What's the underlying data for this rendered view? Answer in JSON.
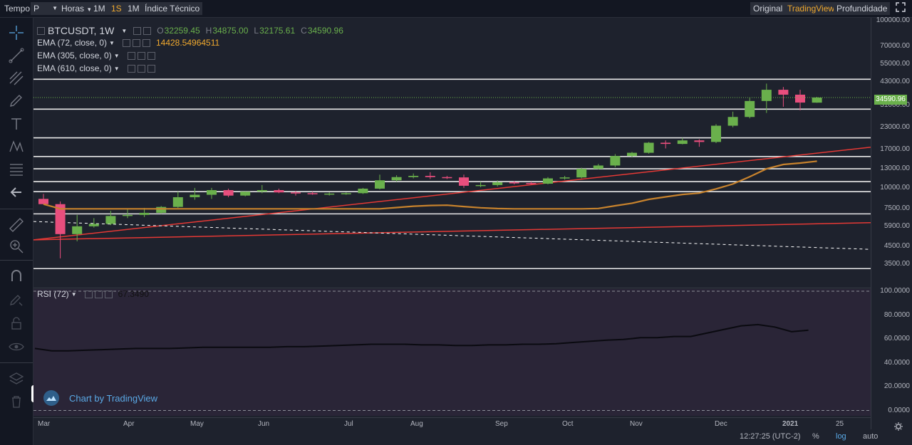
{
  "topbar": {
    "tempo": "Tempo",
    "p": "P",
    "horas": "Horas",
    "tf_1m": "1M",
    "tf_1s": "1S",
    "tf_1m2": "1M",
    "indice": "Índice Técnico",
    "original": "Original",
    "tradingview": "TradingView",
    "profundidade": "Profundidade"
  },
  "legend": {
    "symbol": "BTCUSDT, 1W",
    "o_label": "O",
    "o_value": "32259.45",
    "h_label": "H",
    "h_value": "34875.00",
    "l_label": "L",
    "l_value": "32175.61",
    "c_label": "C",
    "c_value": "34590.96",
    "ema72": "EMA (72, close, 0)",
    "ema72_value": "14428.54964511",
    "ema305": "EMA (305, close, 0)",
    "ema610": "EMA (610, close, 0)",
    "rsi": "RSI (72)",
    "rsi_value": "67.3490"
  },
  "attribution": "Chart by TradingView",
  "price_axis": {
    "labels": [
      "100000.00",
      "70000.00",
      "55000.00",
      "43000.00",
      "31000.00",
      "23000.00",
      "17000.00",
      "13000.00",
      "10000.00",
      "7500.00",
      "5900.00",
      "4500.00",
      "3500.00"
    ],
    "current": "34590.96"
  },
  "rsi_axis": {
    "labels": [
      "100.0000",
      "80.0000",
      "60.0000",
      "40.0000",
      "20.0000",
      "0.0000"
    ]
  },
  "time_axis": {
    "labels": [
      "Mar",
      "Apr",
      "May",
      "Jun",
      "Jul",
      "Aug",
      "Sep",
      "Oct",
      "Nov",
      "Dec",
      "2021",
      "25"
    ]
  },
  "bottom": {
    "time": "12:27:25 (UTC-2)",
    "pct": "%",
    "log": "log",
    "auto": "auto"
  },
  "colors": {
    "up": "#6ab04c",
    "down": "#e84e7d",
    "ema72": "#c8832d",
    "trend": "#e53935",
    "accent": "#f0a92e",
    "link": "#5aa9e6"
  },
  "chart_data": {
    "type": "candlestick",
    "symbol": "BTCUSDT",
    "interval": "1W",
    "scale": "log",
    "ylim": [
      3000,
      100000
    ],
    "candles": [
      {
        "o": 8600,
        "h": 9200,
        "l": 8000,
        "c": 8000
      },
      {
        "o": 8000,
        "h": 8300,
        "l": 3800,
        "c": 5300
      },
      {
        "o": 5300,
        "h": 6900,
        "l": 4800,
        "c": 5900
      },
      {
        "o": 5900,
        "h": 6600,
        "l": 5800,
        "c": 6100
      },
      {
        "o": 6100,
        "h": 7300,
        "l": 6000,
        "c": 6800
      },
      {
        "o": 6800,
        "h": 7500,
        "l": 6600,
        "c": 6900
      },
      {
        "o": 6900,
        "h": 7600,
        "l": 6700,
        "c": 7100
      },
      {
        "o": 7100,
        "h": 7800,
        "l": 7000,
        "c": 7700
      },
      {
        "o": 7700,
        "h": 9500,
        "l": 7600,
        "c": 8800
      },
      {
        "o": 8800,
        "h": 10000,
        "l": 8500,
        "c": 9100
      },
      {
        "o": 9100,
        "h": 10000,
        "l": 8600,
        "c": 9700
      },
      {
        "o": 9700,
        "h": 9900,
        "l": 8800,
        "c": 9000
      },
      {
        "o": 9000,
        "h": 9500,
        "l": 8900,
        "c": 9500
      },
      {
        "o": 9500,
        "h": 10400,
        "l": 9300,
        "c": 9700
      },
      {
        "o": 9700,
        "h": 9900,
        "l": 9300,
        "c": 9400
      },
      {
        "o": 9400,
        "h": 9600,
        "l": 9000,
        "c": 9300
      },
      {
        "o": 9300,
        "h": 9500,
        "l": 9100,
        "c": 9200
      },
      {
        "o": 9200,
        "h": 9400,
        "l": 9000,
        "c": 9250
      },
      {
        "o": 9250,
        "h": 9400,
        "l": 9100,
        "c": 9300
      },
      {
        "o": 9300,
        "h": 10000,
        "l": 9200,
        "c": 9900
      },
      {
        "o": 9900,
        "h": 12000,
        "l": 9800,
        "c": 11100
      },
      {
        "o": 11100,
        "h": 11900,
        "l": 10900,
        "c": 11600
      },
      {
        "o": 11600,
        "h": 12200,
        "l": 11400,
        "c": 11800
      },
      {
        "o": 11800,
        "h": 12400,
        "l": 11300,
        "c": 11600
      },
      {
        "o": 11600,
        "h": 11800,
        "l": 11300,
        "c": 11550
      },
      {
        "o": 11550,
        "h": 12000,
        "l": 10000,
        "c": 10300
      },
      {
        "o": 10300,
        "h": 10900,
        "l": 10100,
        "c": 10400
      },
      {
        "o": 10400,
        "h": 11100,
        "l": 10200,
        "c": 10800
      },
      {
        "o": 10800,
        "h": 11000,
        "l": 10500,
        "c": 10700
      },
      {
        "o": 10700,
        "h": 10900,
        "l": 10500,
        "c": 10600
      },
      {
        "o": 10600,
        "h": 11600,
        "l": 10500,
        "c": 11400
      },
      {
        "o": 11400,
        "h": 11800,
        "l": 11200,
        "c": 11550
      },
      {
        "o": 11550,
        "h": 13200,
        "l": 11400,
        "c": 13000
      },
      {
        "o": 13000,
        "h": 13900,
        "l": 12900,
        "c": 13600
      },
      {
        "o": 13600,
        "h": 15900,
        "l": 13300,
        "c": 15500
      },
      {
        "o": 15500,
        "h": 16400,
        "l": 15200,
        "c": 16200
      },
      {
        "o": 16200,
        "h": 18800,
        "l": 16000,
        "c": 18600
      },
      {
        "o": 18600,
        "h": 19200,
        "l": 17200,
        "c": 18300
      },
      {
        "o": 18300,
        "h": 19900,
        "l": 18200,
        "c": 19200
      },
      {
        "o": 19200,
        "h": 19500,
        "l": 17600,
        "c": 18800
      },
      {
        "o": 18800,
        "h": 24000,
        "l": 18500,
        "c": 23500
      },
      {
        "o": 23500,
        "h": 28500,
        "l": 23000,
        "c": 26500
      },
      {
        "o": 26500,
        "h": 34500,
        "l": 26000,
        "c": 33000
      },
      {
        "o": 33000,
        "h": 41900,
        "l": 28000,
        "c": 38500
      },
      {
        "o": 38500,
        "h": 40000,
        "l": 30500,
        "c": 36000
      },
      {
        "o": 36000,
        "h": 38500,
        "l": 29000,
        "c": 32300
      },
      {
        "o": 32259.45,
        "h": 34875,
        "l": 32175.61,
        "c": 34590.96
      }
    ],
    "horizontal_levels": [
      44500,
      29500,
      19900,
      15400,
      13000,
      10900,
      9500,
      7000,
      3300
    ],
    "ema72_last": 14428.54964511,
    "rsi_last": 67.349,
    "rsi": [
      52,
      50,
      50,
      50.5,
      51,
      51.5,
      52,
      52,
      52,
      52.5,
      53,
      53,
      53,
      53,
      53,
      53.5,
      53.5,
      54,
      54.5,
      55,
      55.5,
      55.5,
      55.5,
      55,
      55,
      54.5,
      54.5,
      55,
      55,
      55.5,
      55.5,
      56,
      57,
      58,
      59,
      59.5,
      61,
      61,
      62,
      62,
      65,
      68,
      71,
      72,
      70,
      66,
      67.35
    ]
  }
}
